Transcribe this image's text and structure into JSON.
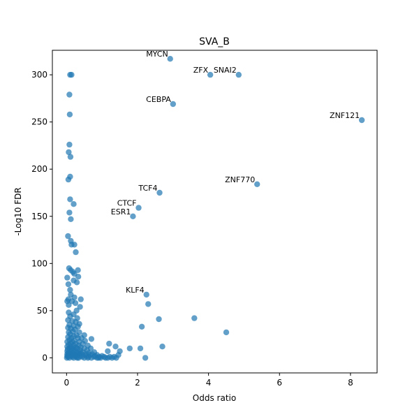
{
  "chart_data": {
    "type": "scatter",
    "title": "SVA_B",
    "xlabel": "Odds ratio",
    "ylabel": "-Log10 FDR",
    "xlim": [
      -0.4,
      8.75
    ],
    "ylim": [
      -16,
      326
    ],
    "xticks": [
      0,
      2,
      4,
      6,
      8
    ],
    "yticks": [
      0,
      50,
      100,
      150,
      200,
      250,
      300
    ],
    "grid": false,
    "color": "#1f77b4",
    "opacity": 0.7,
    "labeled_points": [
      {
        "label": "MYCN",
        "x": 2.92,
        "y": 317
      },
      {
        "label": "ZFX",
        "x": 4.05,
        "y": 300
      },
      {
        "label": "SNAI2",
        "x": 4.85,
        "y": 300
      },
      {
        "label": "CEBPA",
        "x": 3.0,
        "y": 269
      },
      {
        "label": "ZNF121",
        "x": 8.32,
        "y": 252
      },
      {
        "label": "ZNF770",
        "x": 5.37,
        "y": 184
      },
      {
        "label": "TCF4",
        "x": 2.62,
        "y": 175
      },
      {
        "label": "CTCF",
        "x": 2.03,
        "y": 159
      },
      {
        "label": "ESR1",
        "x": 1.87,
        "y": 150
      },
      {
        "label": "KLF4",
        "x": 2.25,
        "y": 67
      }
    ],
    "points": [
      [
        0.1,
        300
      ],
      [
        0.14,
        300
      ],
      [
        0.08,
        279
      ],
      [
        0.09,
        258
      ],
      [
        0.08,
        226
      ],
      [
        0.06,
        218
      ],
      [
        0.11,
        213
      ],
      [
        0.1,
        192
      ],
      [
        0.05,
        189
      ],
      [
        0.1,
        168
      ],
      [
        0.2,
        163
      ],
      [
        0.08,
        154
      ],
      [
        0.12,
        147
      ],
      [
        0.04,
        129
      ],
      [
        0.12,
        124
      ],
      [
        0.14,
        120
      ],
      [
        0.22,
        120
      ],
      [
        0.26,
        112
      ],
      [
        0.07,
        95
      ],
      [
        0.12,
        93
      ],
      [
        0.18,
        91
      ],
      [
        0.32,
        93
      ],
      [
        0.22,
        89
      ],
      [
        0.33,
        86
      ],
      [
        0.02,
        85
      ],
      [
        0.2,
        82
      ],
      [
        0.29,
        80
      ],
      [
        0.05,
        78
      ],
      [
        0.1,
        72
      ],
      [
        0.12,
        67
      ],
      [
        0.22,
        64
      ],
      [
        0.05,
        62
      ],
      [
        0.4,
        62
      ],
      [
        0.02,
        60
      ],
      [
        0.15,
        60
      ],
      [
        0.25,
        58
      ],
      [
        0.06,
        56
      ],
      [
        0.38,
        54
      ],
      [
        0.28,
        50
      ],
      [
        0.06,
        48
      ],
      [
        0.2,
        46
      ],
      [
        0.1,
        44
      ],
      [
        0.3,
        42
      ],
      [
        0.04,
        40
      ],
      [
        0.16,
        39
      ],
      [
        0.26,
        38
      ],
      [
        0.36,
        36
      ],
      [
        0.08,
        35
      ],
      [
        0.2,
        34
      ],
      [
        0.32,
        33
      ],
      [
        0.04,
        32
      ],
      [
        0.12,
        31
      ],
      [
        0.24,
        30
      ],
      [
        0.18,
        28
      ],
      [
        0.06,
        27
      ],
      [
        0.36,
        27
      ],
      [
        0.1,
        25
      ],
      [
        0.28,
        24
      ],
      [
        0.5,
        24
      ],
      [
        0.2,
        23
      ],
      [
        0.04,
        22
      ],
      [
        0.14,
        21
      ],
      [
        0.32,
        21
      ],
      [
        0.42,
        21
      ],
      [
        0.7,
        20
      ],
      [
        0.08,
        19
      ],
      [
        0.22,
        18
      ],
      [
        0.52,
        18
      ],
      [
        0.02,
        17
      ],
      [
        0.16,
        17
      ],
      [
        0.36,
        17
      ],
      [
        0.12,
        15
      ],
      [
        0.26,
        15
      ],
      [
        0.46,
        15
      ],
      [
        0.06,
        14
      ],
      [
        0.2,
        13
      ],
      [
        0.34,
        13
      ],
      [
        0.6,
        13
      ],
      [
        0.02,
        12
      ],
      [
        0.12,
        12
      ],
      [
        0.26,
        11
      ],
      [
        0.4,
        11
      ],
      [
        0.08,
        10
      ],
      [
        0.18,
        10
      ],
      [
        0.3,
        10
      ],
      [
        0.5,
        10
      ],
      [
        0.68,
        10
      ],
      [
        0.03,
        9
      ],
      [
        0.14,
        9
      ],
      [
        0.24,
        8
      ],
      [
        0.38,
        8
      ],
      [
        0.58,
        8
      ],
      [
        0.02,
        7
      ],
      [
        0.1,
        7
      ],
      [
        0.2,
        7
      ],
      [
        0.32,
        6
      ],
      [
        0.46,
        6
      ],
      [
        0.78,
        6
      ],
      [
        0.05,
        5
      ],
      [
        0.16,
        5
      ],
      [
        0.28,
        5
      ],
      [
        0.4,
        5
      ],
      [
        0.62,
        5
      ],
      [
        0.02,
        4
      ],
      [
        0.1,
        4
      ],
      [
        0.22,
        4
      ],
      [
        0.36,
        4
      ],
      [
        0.54,
        4
      ],
      [
        0.72,
        4
      ],
      [
        0.06,
        3
      ],
      [
        0.18,
        3
      ],
      [
        0.3,
        3
      ],
      [
        0.46,
        3
      ],
      [
        0.66,
        3
      ],
      [
        0.86,
        3
      ],
      [
        0.02,
        2
      ],
      [
        0.12,
        2
      ],
      [
        0.24,
        2
      ],
      [
        0.38,
        2
      ],
      [
        0.56,
        2
      ],
      [
        0.8,
        2
      ],
      [
        1.0,
        2
      ],
      [
        0.04,
        1
      ],
      [
        0.16,
        1
      ],
      [
        0.28,
        1
      ],
      [
        0.44,
        1
      ],
      [
        0.62,
        1
      ],
      [
        0.78,
        1
      ],
      [
        0.92,
        1
      ],
      [
        1.06,
        1
      ],
      [
        1.22,
        1
      ],
      [
        0.01,
        0
      ],
      [
        0.08,
        0
      ],
      [
        0.2,
        0
      ],
      [
        0.34,
        0
      ],
      [
        0.5,
        0
      ],
      [
        0.7,
        0
      ],
      [
        0.86,
        0
      ],
      [
        0.96,
        0
      ],
      [
        1.1,
        0
      ],
      [
        1.28,
        0
      ],
      [
        1.4,
        0
      ],
      [
        0.3,
        0
      ],
      [
        0.6,
        0
      ],
      [
        0.9,
        0
      ],
      [
        1.16,
        0
      ],
      [
        1.34,
        1
      ],
      [
        1.46,
        3
      ],
      [
        1.5,
        7
      ],
      [
        1.38,
        12
      ],
      [
        1.2,
        15
      ],
      [
        1.16,
        7
      ],
      [
        1.78,
        10
      ],
      [
        2.08,
        10
      ],
      [
        2.12,
        33
      ],
      [
        2.22,
        0
      ],
      [
        2.3,
        57
      ],
      [
        2.6,
        41
      ],
      [
        2.7,
        12
      ],
      [
        3.6,
        42
      ],
      [
        4.5,
        27
      ]
    ]
  }
}
